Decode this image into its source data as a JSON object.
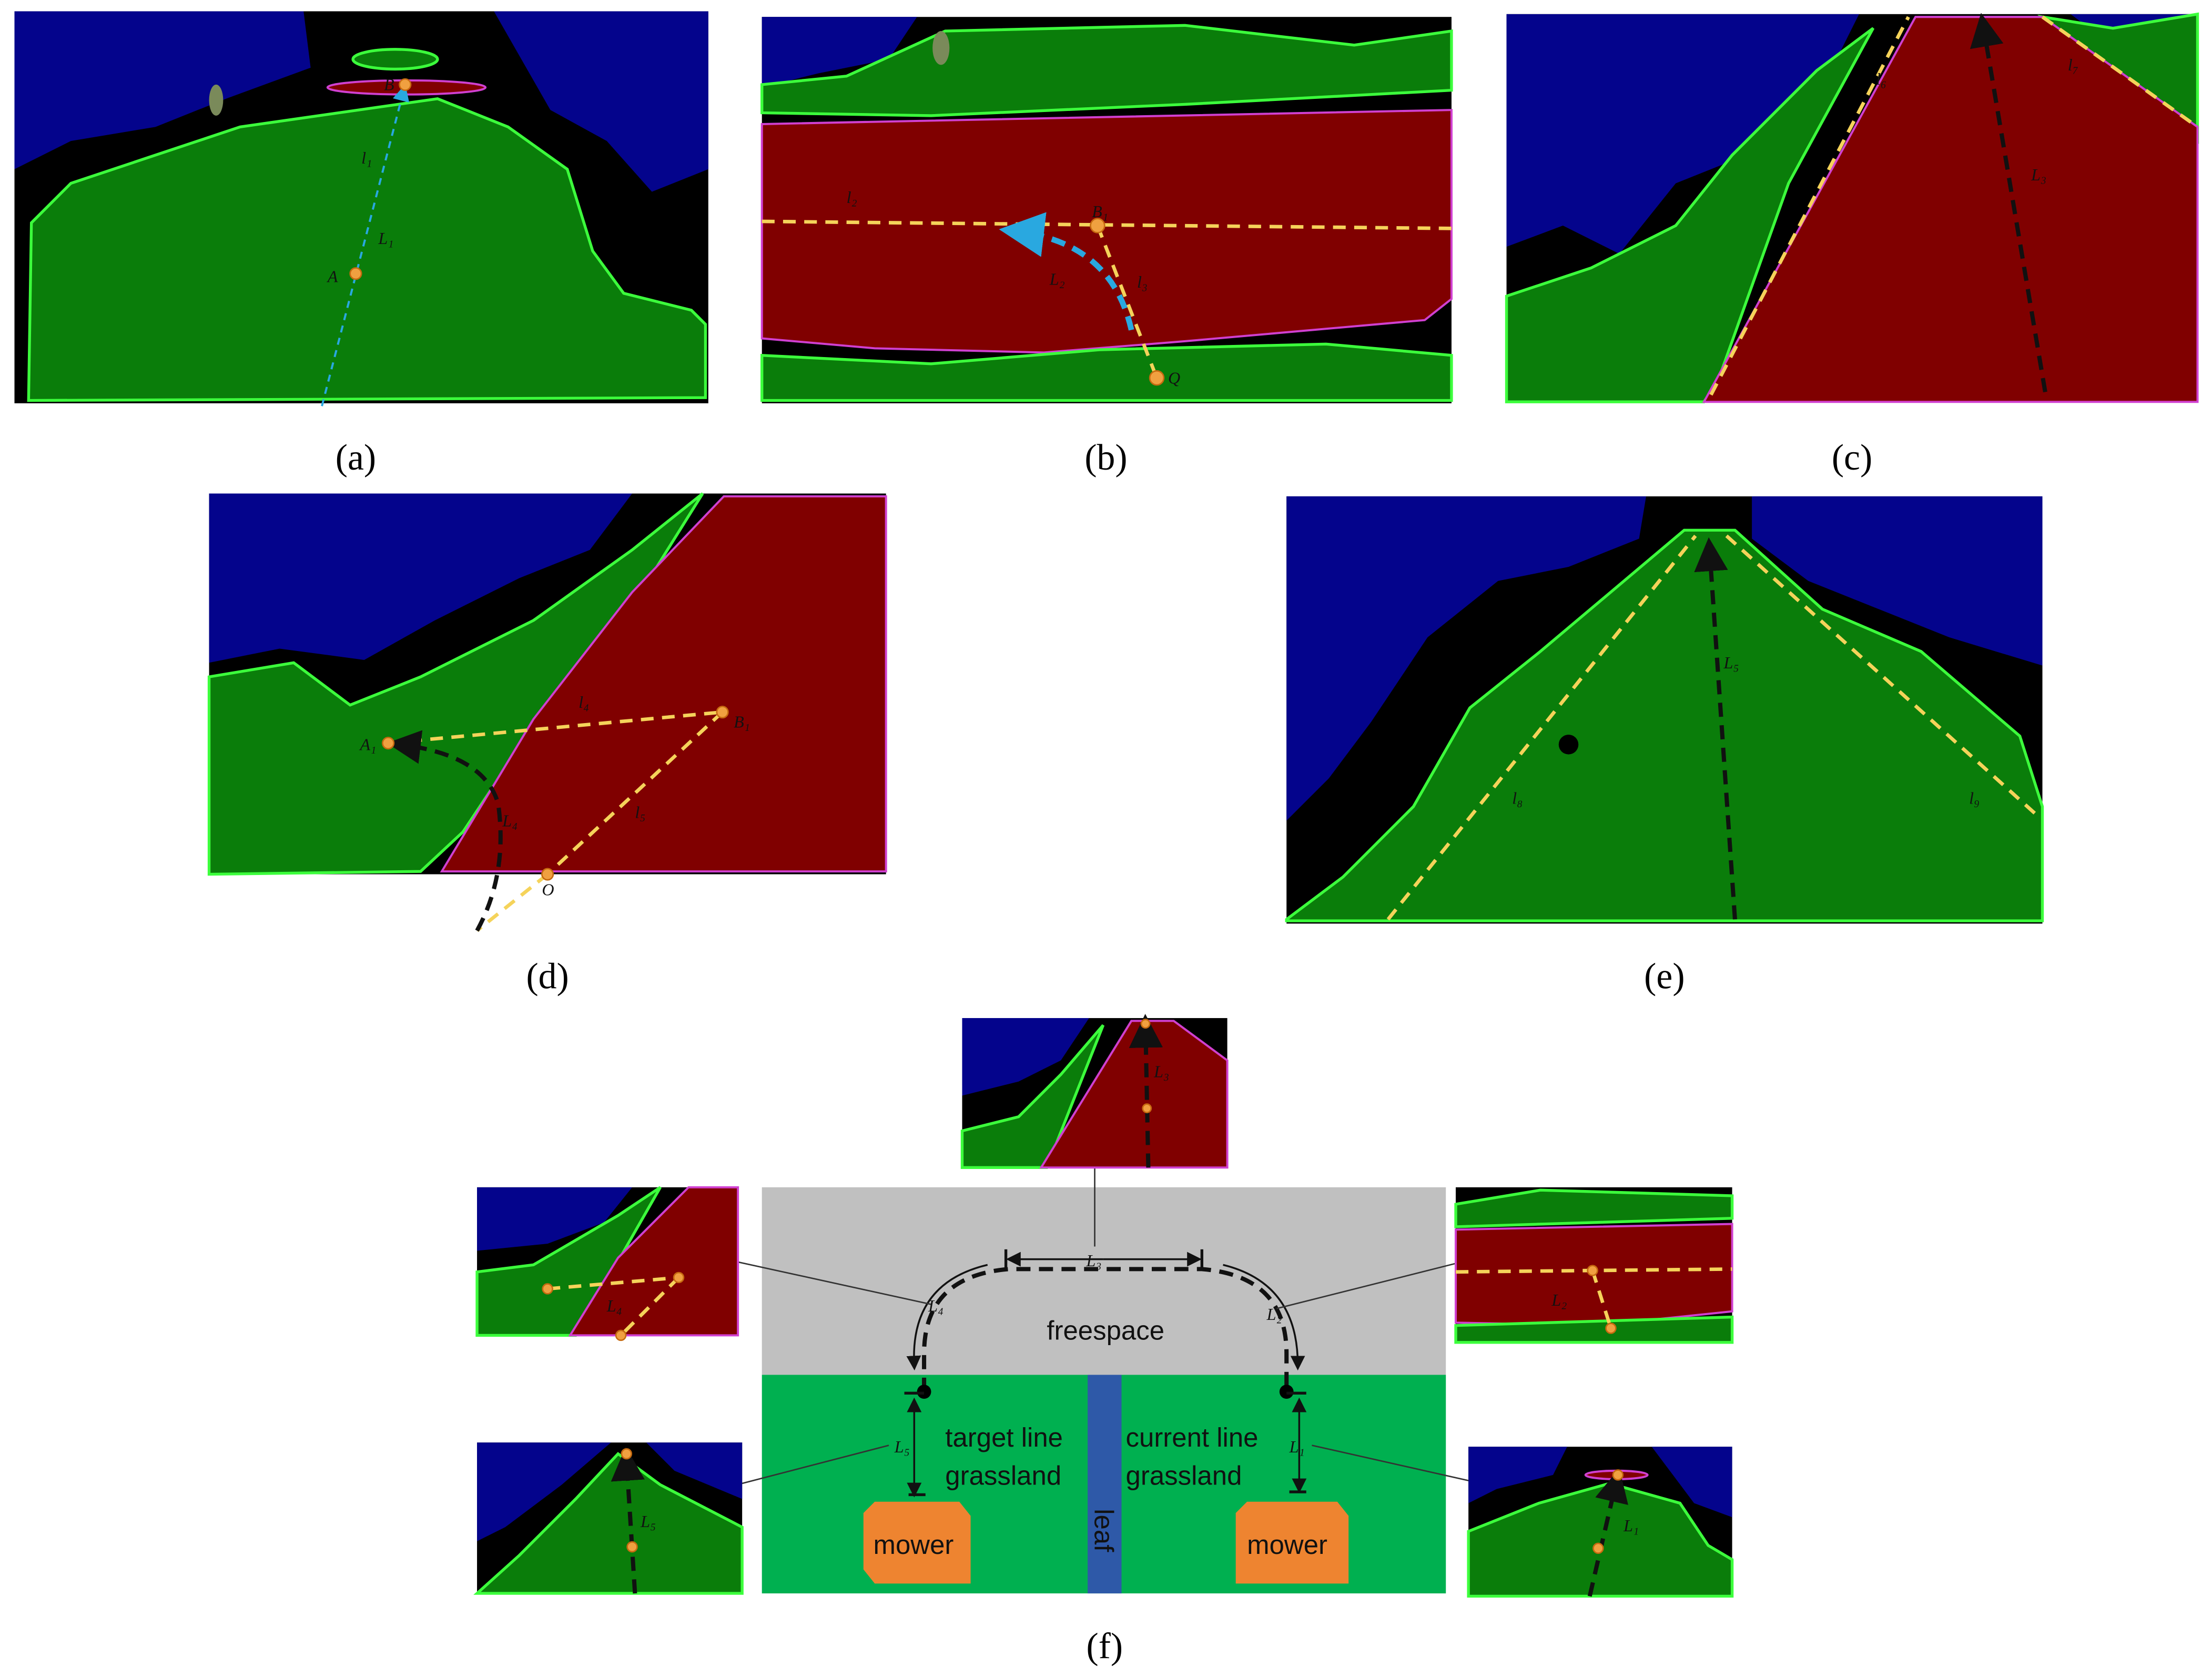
{
  "panels": [
    {
      "caption": "(a)",
      "labels": [
        "B",
        "l₁",
        "L₁",
        "A"
      ]
    },
    {
      "caption": "(b)",
      "labels": [
        "l₂",
        "B₁",
        "L₂",
        "l₃",
        "Q"
      ]
    },
    {
      "caption": "(c)",
      "labels": [
        "l₆",
        "l₇",
        "L₃"
      ]
    },
    {
      "caption": "(d)",
      "labels": [
        "A₁",
        "l₄",
        "B₁",
        "L₄",
        "l₅",
        "O"
      ]
    },
    {
      "caption": "(e)",
      "labels": [
        "L₅",
        "l₈",
        "l₉"
      ]
    },
    {
      "caption": "(f)"
    }
  ],
  "diagram": {
    "thumbnails": [
      "L₃",
      "L₄",
      "L₂",
      "L₅",
      "L₁"
    ],
    "path_labels": [
      "L₃",
      "L₄",
      "L₂",
      "L₅",
      "L₁"
    ],
    "region_top": "freespace",
    "left_lane": [
      "target line",
      "grassland"
    ],
    "right_lane": [
      "current line",
      "grassland"
    ],
    "mowers": [
      "mower",
      "mower"
    ],
    "divider": "leaf"
  }
}
